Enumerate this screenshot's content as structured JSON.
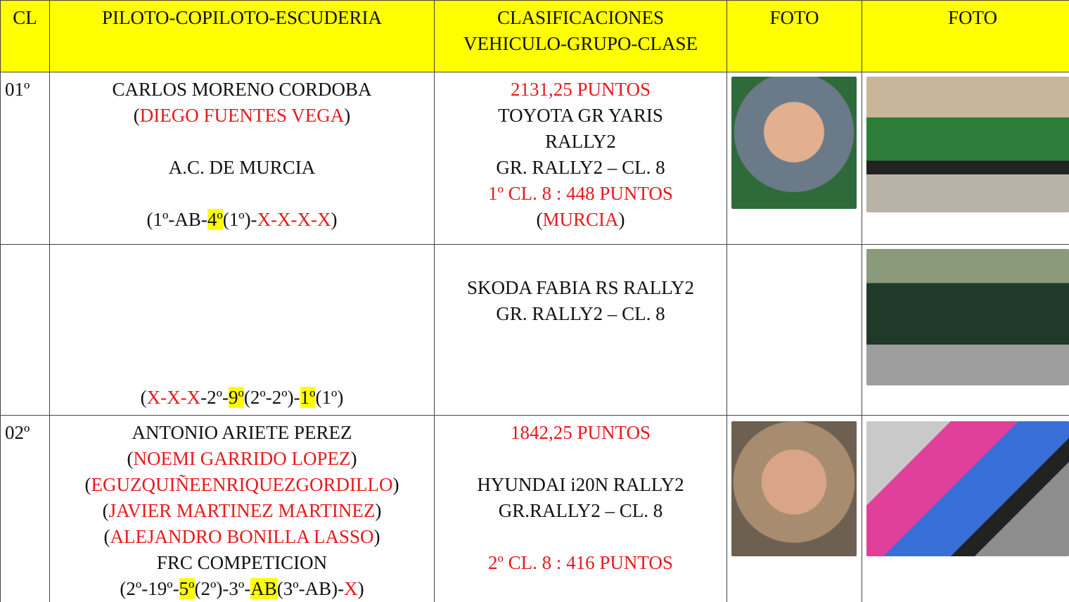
{
  "table": {
    "header": [
      [
        "CL"
      ],
      [
        "PILOTO-COPILOTO-ESCUDERIA"
      ],
      [
        "CLASIFICACIONES",
        "VEHICULO-GRUPO-CLASE"
      ],
      [
        "FOTO"
      ],
      [
        "FOTO"
      ]
    ],
    "header_color": "#ffff00",
    "rows": [
      {
        "cl": "01º",
        "piloto": [
          [
            {
              "text": "CARLOS MORENO CORDOBA"
            }
          ],
          [
            {
              "text": "("
            },
            {
              "text": "DIEGO FUENTES VEGA",
              "color": "#e8191b"
            },
            {
              "text": ")"
            }
          ],
          [],
          [
            {
              "text": "A.C. DE MURCIA"
            }
          ],
          [],
          [
            {
              "text": "(1º-AB-"
            },
            {
              "text": "4º",
              "highlight": "#ffff00"
            },
            {
              "text": "(1º)-"
            },
            {
              "text": "X-X-X-X",
              "color": "#e8191b"
            },
            {
              "text": ")"
            }
          ]
        ],
        "clasif": [
          [
            {
              "text": "2131,25 PUNTOS",
              "color": "#e8191b"
            }
          ],
          [
            {
              "text": "TOYOTA GR YARIS"
            }
          ],
          [
            {
              "text": "RALLY2"
            }
          ],
          [
            {
              "text": "GR. RALLY2 – CL. 8"
            }
          ],
          [
            {
              "text": "1º CL. 8 : 448 PUNTOS",
              "color": "#e8191b"
            }
          ],
          [
            {
              "text": "("
            },
            {
              "text": "MURCIA",
              "color": "#e8191b"
            },
            {
              "text": ")"
            }
          ]
        ]
      },
      {
        "piloto": [
          [
            {
              "text": "("
            },
            {
              "text": "X-X-X",
              "color": "#e8191b"
            },
            {
              "text": "-2º-"
            },
            {
              "text": "9º",
              "highlight": "#ffff00"
            },
            {
              "text": "(2º-2º)-"
            },
            {
              "text": "1º",
              "highlight": "#ffff00"
            },
            {
              "text": "(1º)"
            }
          ]
        ],
        "clasif": [
          [],
          [
            {
              "text": "SKODA FABIA RS RALLY2"
            }
          ],
          [
            {
              "text": "GR. RALLY2 – CL. 8"
            }
          ]
        ]
      },
      {
        "cl": "02º",
        "piloto": [
          [
            {
              "text": "ANTONIO ARIETE PEREZ"
            }
          ],
          [
            {
              "text": "("
            },
            {
              "text": "NOEMI GARRIDO LOPEZ",
              "color": "#e8191b"
            },
            {
              "text": ")"
            }
          ],
          [
            {
              "text": "("
            },
            {
              "text": "EGUZQUIÑEENRIQUEZGORDILLO",
              "color": "#e8191b"
            },
            {
              "text": ")"
            }
          ],
          [
            {
              "text": "("
            },
            {
              "text": "JAVIER MARTINEZ MARTINEZ",
              "color": "#e8191b"
            },
            {
              "text": ")"
            }
          ],
          [
            {
              "text": "("
            },
            {
              "text": "ALEJANDRO BONILLA LASSO",
              "color": "#e8191b"
            },
            {
              "text": ")"
            }
          ],
          [
            {
              "text": "FRC COMPETICION"
            }
          ],
          [
            {
              "text": "(2º-19º-"
            },
            {
              "text": "5º",
              "highlight": "#ffff00"
            },
            {
              "text": "(2º)-3º-"
            },
            {
              "text": "AB",
              "highlight": "#ffff00"
            },
            {
              "text": "(3º-AB)-"
            },
            {
              "text": "X",
              "color": "#e8191b"
            },
            {
              "text": ")"
            }
          ]
        ],
        "clasif": [
          [
            {
              "text": "1842,25 PUNTOS",
              "color": "#e8191b"
            }
          ],
          [],
          [
            {
              "text": "HYUNDAI i20N RALLY2"
            }
          ],
          [
            {
              "text": "GR.RALLY2 – CL. 8"
            }
          ],
          [],
          [
            {
              "text": "2º CL. 8 : 416 PUNTOS",
              "color": "#e8191b"
            }
          ]
        ]
      }
    ]
  }
}
